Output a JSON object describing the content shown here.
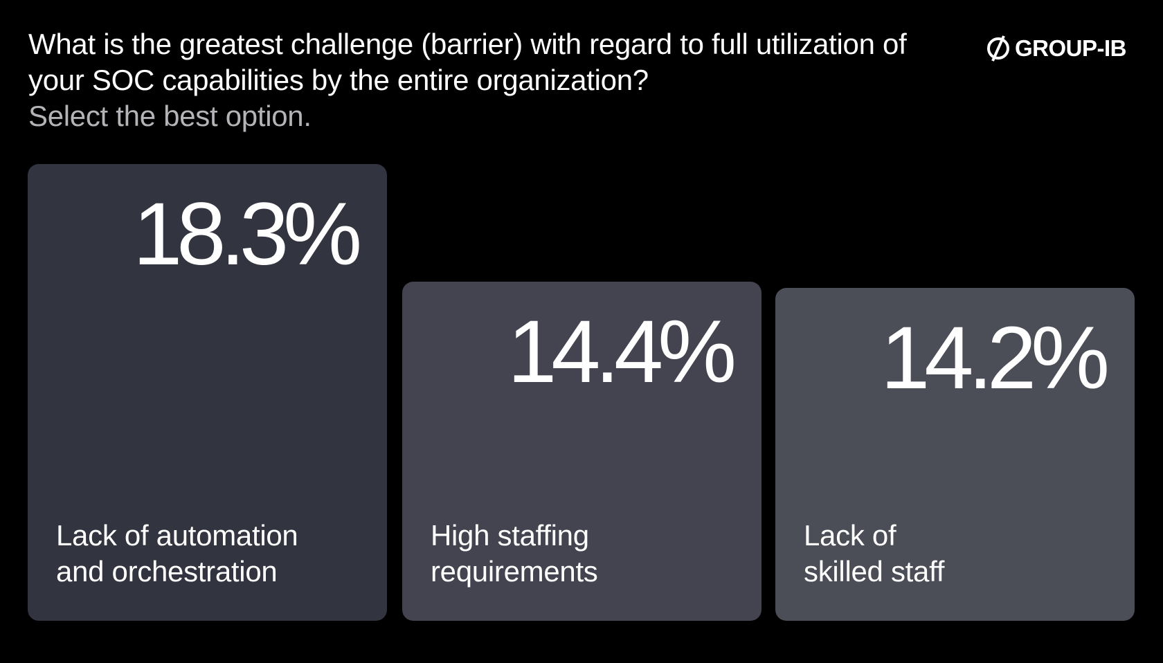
{
  "header": {
    "title": "What is the greatest challenge (barrier) with regard to full utilization of your SOC capabilities by the entire organization?",
    "subtitle": "Select the best option."
  },
  "logo": {
    "text": "GROUP-IB",
    "icon": "group-ib-logo-icon"
  },
  "chart_data": {
    "type": "bar",
    "title": "What is the greatest challenge (barrier) with regard to full utilization of your SOC capabilities by the entire organization?",
    "subtitle": "Select the best option.",
    "categories": [
      "Lack of automation\nand orchestration",
      "High staffing\nrequirements",
      "Lack of\nskilled staff"
    ],
    "values": [
      18.3,
      14.4,
      14.2
    ],
    "labels": [
      "18.3%",
      "14.4%",
      "14.2%"
    ],
    "unit": "%",
    "colors": [
      "#32343f",
      "#43444f",
      "#4b4e57"
    ],
    "grid": false
  }
}
